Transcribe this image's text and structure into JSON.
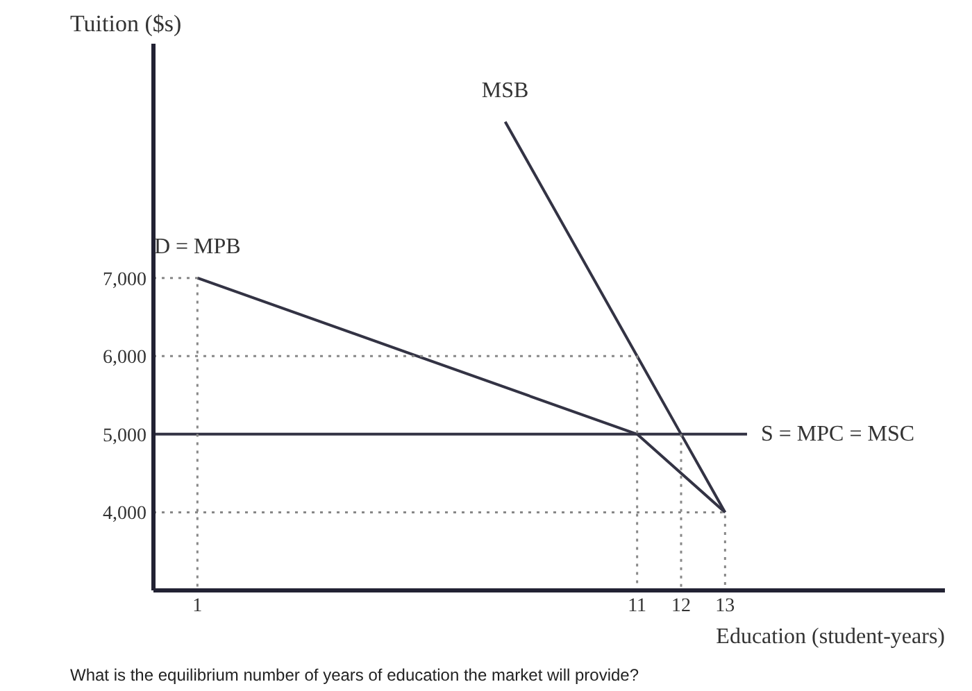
{
  "chart_data": {
    "type": "line",
    "ylabel": "Tuition ($s)",
    "xlabel": "Education (student-years)",
    "xlim": [
      0,
      18
    ],
    "ylim": [
      3000,
      10000
    ],
    "xticks": [
      1,
      11,
      12,
      13
    ],
    "yticks": [
      {
        "value": 4000,
        "label": "4,000"
      },
      {
        "value": 5000,
        "label": "5,000"
      },
      {
        "value": 6000,
        "label": "6,000"
      },
      {
        "value": 7000,
        "label": "7,000"
      }
    ],
    "grid": false,
    "line_style": "solid",
    "series": [
      {
        "name": "MSB",
        "color": "#333344",
        "x": [
          8,
          11,
          12,
          13
        ],
        "values": [
          9000,
          6000,
          5000,
          4000
        ]
      },
      {
        "name": "D = MPB",
        "color": "#333344",
        "x": [
          1,
          11,
          13
        ],
        "values": [
          7000,
          5000,
          4000
        ]
      },
      {
        "name": "S = MPC = MSC",
        "color": "#333344",
        "x": [
          0,
          13.5
        ],
        "values": [
          5000,
          5000
        ]
      },
      {
        "color": "#888888",
        "line_style": "dotted",
        "x": [
          0,
          1,
          1
        ],
        "values": [
          7000,
          7000,
          3000
        ]
      },
      {
        "color": "#888888",
        "line_style": "dotted",
        "x": [
          0,
          11,
          11
        ],
        "values": [
          6000,
          6000,
          3000
        ]
      },
      {
        "color": "#888888",
        "line_style": "dotted",
        "x": [
          0,
          13,
          13
        ],
        "values": [
          4000,
          4000,
          3000
        ]
      },
      {
        "color": "#888888",
        "line_style": "dotted",
        "x": [
          12,
          12
        ],
        "values": [
          5000,
          3000
        ]
      }
    ],
    "annotations": [
      "What is the equilibrium number of years of education the market will provide?"
    ]
  }
}
